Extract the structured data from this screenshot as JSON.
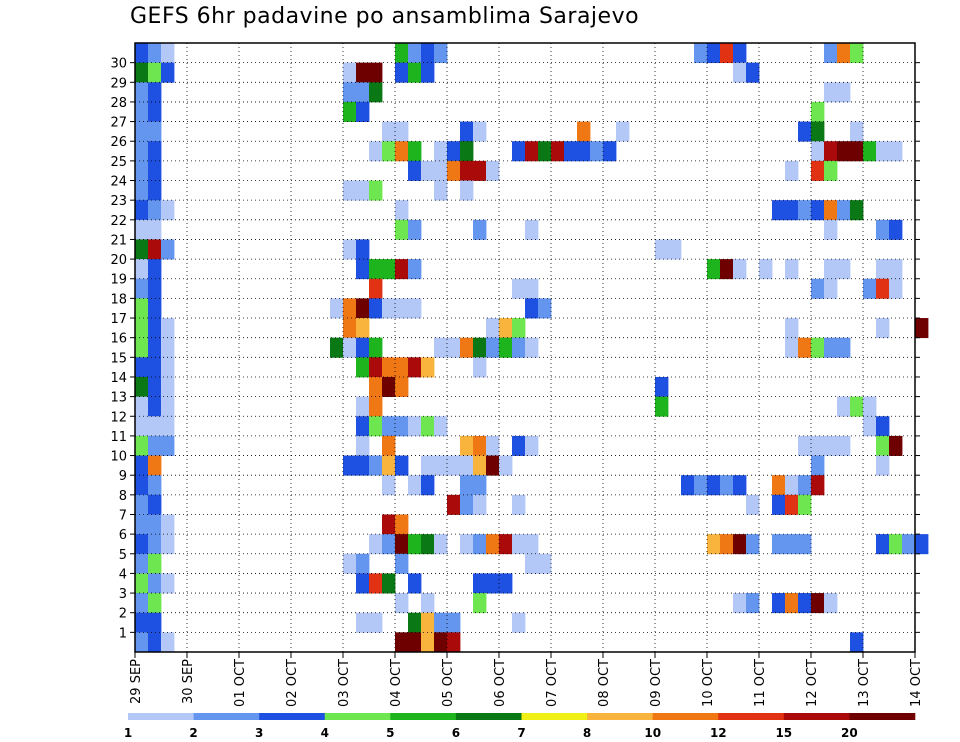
{
  "chart_data": {
    "type": "heatmap",
    "title": "GEFS 6hr padavine po ansamblima Sarajevo",
    "xlabel": "",
    "ylabel": "",
    "x_ticks": [
      "29 SEP",
      "30 SEP",
      "01 OCT",
      "02 OCT",
      "03 OCT",
      "04 OCT",
      "05 OCT",
      "06 OCT",
      "07 OCT",
      "08 OCT",
      "09 OCT",
      "10 OCT",
      "11 OCT",
      "12 OCT",
      "13 OCT",
      "14 OCT"
    ],
    "y_ticks": [
      1,
      2,
      3,
      4,
      5,
      6,
      7,
      8,
      9,
      10,
      11,
      12,
      13,
      14,
      15,
      16,
      17,
      18,
      19,
      20,
      21,
      22,
      23,
      24,
      25,
      26,
      27,
      28,
      29,
      30
    ],
    "steps_per_day": 4,
    "members": 30,
    "grid": true,
    "colorbar": {
      "labels": [
        "1",
        "2",
        "3",
        "4",
        "5",
        "6",
        "7",
        "8",
        "10",
        "12",
        "15",
        "20"
      ],
      "colors": [
        "#b4c8f8",
        "#6496f0",
        "#1e50e1",
        "#6ee650",
        "#1eb41e",
        "#0a7814",
        "#f0f014",
        "#f8b43c",
        "#f07814",
        "#e13214",
        "#aa0a0a",
        "#6e0000"
      ]
    },
    "cells": [
      [
        30,
        0,
        3
      ],
      [
        30,
        1,
        2
      ],
      [
        30,
        2,
        1
      ],
      [
        30,
        20,
        5
      ],
      [
        30,
        21,
        2
      ],
      [
        30,
        22,
        3
      ],
      [
        30,
        23,
        2
      ],
      [
        30,
        43,
        2
      ],
      [
        30,
        44,
        3
      ],
      [
        30,
        45,
        10
      ],
      [
        30,
        46,
        3
      ],
      [
        30,
        53,
        2
      ],
      [
        30,
        54,
        9
      ],
      [
        30,
        55,
        4
      ],
      [
        29,
        0,
        6
      ],
      [
        29,
        1,
        4
      ],
      [
        29,
        2,
        3
      ],
      [
        29,
        16,
        1
      ],
      [
        29,
        17,
        12
      ],
      [
        29,
        18,
        12
      ],
      [
        29,
        20,
        3
      ],
      [
        29,
        21,
        5
      ],
      [
        29,
        22,
        3
      ],
      [
        29,
        46,
        1
      ],
      [
        29,
        47,
        3
      ],
      [
        28,
        0,
        2
      ],
      [
        28,
        1,
        3
      ],
      [
        28,
        16,
        2
      ],
      [
        28,
        17,
        2
      ],
      [
        28,
        18,
        6
      ],
      [
        28,
        53,
        1
      ],
      [
        28,
        54,
        1
      ],
      [
        27,
        0,
        2
      ],
      [
        27,
        1,
        3
      ],
      [
        27,
        16,
        5
      ],
      [
        27,
        17,
        3
      ],
      [
        27,
        52,
        4
      ],
      [
        26,
        0,
        2
      ],
      [
        26,
        1,
        2
      ],
      [
        26,
        19,
        1
      ],
      [
        26,
        20,
        1
      ],
      [
        26,
        25,
        3
      ],
      [
        26,
        26,
        1
      ],
      [
        26,
        34,
        9
      ],
      [
        26,
        37,
        1
      ],
      [
        26,
        51,
        3
      ],
      [
        26,
        52,
        6
      ],
      [
        26,
        55,
        1
      ],
      [
        25,
        0,
        2
      ],
      [
        25,
        1,
        3
      ],
      [
        25,
        18,
        1
      ],
      [
        25,
        19,
        4
      ],
      [
        25,
        20,
        9
      ],
      [
        25,
        21,
        5
      ],
      [
        25,
        23,
        1
      ],
      [
        25,
        24,
        3
      ],
      [
        25,
        25,
        6
      ],
      [
        25,
        29,
        3
      ],
      [
        25,
        30,
        11
      ],
      [
        25,
        31,
        6
      ],
      [
        25,
        32,
        11
      ],
      [
        25,
        33,
        3
      ],
      [
        25,
        34,
        3
      ],
      [
        25,
        35,
        2
      ],
      [
        25,
        36,
        3
      ],
      [
        25,
        52,
        1
      ],
      [
        25,
        53,
        11
      ],
      [
        25,
        54,
        12
      ],
      [
        25,
        55,
        12
      ],
      [
        25,
        56,
        5
      ],
      [
        25,
        57,
        1
      ],
      [
        25,
        58,
        1
      ],
      [
        24,
        0,
        2
      ],
      [
        24,
        1,
        3
      ],
      [
        24,
        21,
        3
      ],
      [
        24,
        22,
        1
      ],
      [
        24,
        23,
        1
      ],
      [
        24,
        24,
        9
      ],
      [
        24,
        25,
        11
      ],
      [
        24,
        26,
        11
      ],
      [
        24,
        27,
        1
      ],
      [
        24,
        50,
        1
      ],
      [
        24,
        52,
        10
      ],
      [
        24,
        53,
        4
      ],
      [
        23,
        0,
        2
      ],
      [
        23,
        1,
        3
      ],
      [
        23,
        16,
        1
      ],
      [
        23,
        17,
        1
      ],
      [
        23,
        18,
        4
      ],
      [
        23,
        23,
        1
      ],
      [
        23,
        25,
        1
      ],
      [
        22,
        0,
        3
      ],
      [
        22,
        1,
        2
      ],
      [
        22,
        2,
        1
      ],
      [
        22,
        20,
        1
      ],
      [
        22,
        49,
        3
      ],
      [
        22,
        50,
        3
      ],
      [
        22,
        51,
        2
      ],
      [
        22,
        52,
        3
      ],
      [
        22,
        53,
        9
      ],
      [
        22,
        54,
        2
      ],
      [
        22,
        55,
        6
      ],
      [
        21,
        0,
        1
      ],
      [
        21,
        1,
        1
      ],
      [
        21,
        20,
        4
      ],
      [
        21,
        21,
        2
      ],
      [
        21,
        26,
        2
      ],
      [
        21,
        30,
        1
      ],
      [
        21,
        53,
        1
      ],
      [
        21,
        57,
        2
      ],
      [
        21,
        58,
        3
      ],
      [
        20,
        0,
        6
      ],
      [
        20,
        1,
        11
      ],
      [
        20,
        2,
        2
      ],
      [
        20,
        16,
        1
      ],
      [
        20,
        17,
        3
      ],
      [
        20,
        40,
        1
      ],
      [
        20,
        41,
        1
      ],
      [
        19,
        0,
        1
      ],
      [
        19,
        1,
        3
      ],
      [
        19,
        17,
        3
      ],
      [
        19,
        18,
        5
      ],
      [
        19,
        19,
        5
      ],
      [
        19,
        20,
        11
      ],
      [
        19,
        21,
        2
      ],
      [
        19,
        44,
        5
      ],
      [
        19,
        45,
        12
      ],
      [
        19,
        46,
        1
      ],
      [
        19,
        48,
        1
      ],
      [
        19,
        50,
        1
      ],
      [
        19,
        53,
        1
      ],
      [
        19,
        54,
        1
      ],
      [
        19,
        57,
        1
      ],
      [
        19,
        58,
        1
      ],
      [
        18,
        0,
        2
      ],
      [
        18,
        1,
        3
      ],
      [
        18,
        18,
        10
      ],
      [
        18,
        29,
        1
      ],
      [
        18,
        30,
        1
      ],
      [
        18,
        52,
        2
      ],
      [
        18,
        53,
        1
      ],
      [
        18,
        56,
        2
      ],
      [
        18,
        57,
        10
      ],
      [
        18,
        58,
        1
      ],
      [
        17,
        0,
        4
      ],
      [
        17,
        1,
        3
      ],
      [
        17,
        15,
        1
      ],
      [
        17,
        16,
        9
      ],
      [
        17,
        17,
        12
      ],
      [
        17,
        18,
        3
      ],
      [
        17,
        19,
        1
      ],
      [
        17,
        20,
        1
      ],
      [
        17,
        21,
        1
      ],
      [
        17,
        30,
        3
      ],
      [
        17,
        31,
        2
      ],
      [
        16,
        0,
        4
      ],
      [
        16,
        1,
        3
      ],
      [
        16,
        2,
        1
      ],
      [
        16,
        16,
        9
      ],
      [
        16,
        17,
        8
      ],
      [
        16,
        27,
        1
      ],
      [
        16,
        28,
        8
      ],
      [
        16,
        29,
        4
      ],
      [
        16,
        50,
        1
      ],
      [
        16,
        57,
        1
      ],
      [
        16,
        60,
        12
      ],
      [
        15,
        0,
        4
      ],
      [
        15,
        1,
        3
      ],
      [
        15,
        2,
        1
      ],
      [
        15,
        15,
        6
      ],
      [
        15,
        16,
        1
      ],
      [
        15,
        17,
        3
      ],
      [
        15,
        18,
        5
      ],
      [
        15,
        23,
        1
      ],
      [
        15,
        24,
        1
      ],
      [
        15,
        25,
        9
      ],
      [
        15,
        26,
        6
      ],
      [
        15,
        27,
        2
      ],
      [
        15,
        28,
        5
      ],
      [
        15,
        29,
        2
      ],
      [
        15,
        30,
        1
      ],
      [
        15,
        50,
        1
      ],
      [
        15,
        51,
        9
      ],
      [
        15,
        52,
        4
      ],
      [
        15,
        53,
        2
      ],
      [
        15,
        54,
        2
      ],
      [
        14,
        0,
        3
      ],
      [
        14,
        1,
        3
      ],
      [
        14,
        2,
        1
      ],
      [
        14,
        17,
        5
      ],
      [
        14,
        18,
        11
      ],
      [
        14,
        19,
        9
      ],
      [
        14,
        20,
        9
      ],
      [
        14,
        21,
        11
      ],
      [
        14,
        22,
        8
      ],
      [
        14,
        26,
        1
      ],
      [
        13,
        0,
        6
      ],
      [
        13,
        1,
        3
      ],
      [
        13,
        2,
        1
      ],
      [
        13,
        18,
        9
      ],
      [
        13,
        19,
        12
      ],
      [
        13,
        20,
        9
      ],
      [
        13,
        40,
        3
      ],
      [
        12,
        0,
        1
      ],
      [
        12,
        1,
        3
      ],
      [
        12,
        2,
        1
      ],
      [
        12,
        17,
        1
      ],
      [
        12,
        18,
        9
      ],
      [
        12,
        40,
        5
      ],
      [
        12,
        54,
        1
      ],
      [
        12,
        55,
        4
      ],
      [
        12,
        56,
        1
      ],
      [
        11,
        0,
        1
      ],
      [
        11,
        1,
        1
      ],
      [
        11,
        2,
        1
      ],
      [
        11,
        17,
        3
      ],
      [
        11,
        18,
        4
      ],
      [
        11,
        19,
        2
      ],
      [
        11,
        20,
        2
      ],
      [
        11,
        21,
        1
      ],
      [
        11,
        22,
        4
      ],
      [
        11,
        23,
        1
      ],
      [
        11,
        56,
        1
      ],
      [
        11,
        57,
        3
      ],
      [
        10,
        0,
        4
      ],
      [
        10,
        1,
        2
      ],
      [
        10,
        2,
        2
      ],
      [
        10,
        17,
        1
      ],
      [
        10,
        19,
        9
      ],
      [
        10,
        25,
        8
      ],
      [
        10,
        26,
        9
      ],
      [
        10,
        27,
        1
      ],
      [
        10,
        29,
        3
      ],
      [
        10,
        30,
        1
      ],
      [
        10,
        51,
        1
      ],
      [
        10,
        52,
        1
      ],
      [
        10,
        53,
        1
      ],
      [
        10,
        54,
        1
      ],
      [
        10,
        57,
        4
      ],
      [
        10,
        58,
        12
      ],
      [
        9,
        0,
        3
      ],
      [
        9,
        1,
        9
      ],
      [
        9,
        16,
        3
      ],
      [
        9,
        17,
        3
      ],
      [
        9,
        18,
        2
      ],
      [
        9,
        19,
        8
      ],
      [
        9,
        20,
        3
      ],
      [
        9,
        22,
        1
      ],
      [
        9,
        23,
        1
      ],
      [
        9,
        24,
        1
      ],
      [
        9,
        25,
        1
      ],
      [
        9,
        26,
        8
      ],
      [
        9,
        27,
        12
      ],
      [
        9,
        28,
        1
      ],
      [
        9,
        52,
        2
      ],
      [
        9,
        57,
        1
      ],
      [
        8,
        0,
        3
      ],
      [
        8,
        1,
        2
      ],
      [
        8,
        19,
        1
      ],
      [
        8,
        21,
        1
      ],
      [
        8,
        22,
        3
      ],
      [
        8,
        25,
        2
      ],
      [
        8,
        26,
        2
      ],
      [
        8,
        42,
        3
      ],
      [
        8,
        43,
        2
      ],
      [
        8,
        44,
        3
      ],
      [
        8,
        45,
        2
      ],
      [
        8,
        46,
        3
      ],
      [
        8,
        49,
        9
      ],
      [
        8,
        50,
        1
      ],
      [
        8,
        51,
        2
      ],
      [
        8,
        52,
        11
      ],
      [
        7,
        0,
        2
      ],
      [
        7,
        1,
        3
      ],
      [
        7,
        24,
        11
      ],
      [
        7,
        25,
        2
      ],
      [
        7,
        26,
        1
      ],
      [
        7,
        29,
        1
      ],
      [
        7,
        47,
        1
      ],
      [
        7,
        49,
        3
      ],
      [
        7,
        50,
        10
      ],
      [
        7,
        51,
        4
      ],
      [
        6,
        0,
        2
      ],
      [
        6,
        1,
        2
      ],
      [
        6,
        2,
        1
      ],
      [
        6,
        19,
        11
      ],
      [
        6,
        20,
        9
      ],
      [
        5,
        0,
        3
      ],
      [
        5,
        1,
        2
      ],
      [
        5,
        2,
        1
      ],
      [
        5,
        18,
        1
      ],
      [
        5,
        19,
        2
      ],
      [
        5,
        20,
        12
      ],
      [
        5,
        21,
        5
      ],
      [
        5,
        22,
        6
      ],
      [
        5,
        23,
        1
      ],
      [
        5,
        25,
        1
      ],
      [
        5,
        26,
        2
      ],
      [
        5,
        27,
        9
      ],
      [
        5,
        28,
        11
      ],
      [
        5,
        29,
        1
      ],
      [
        5,
        30,
        1
      ],
      [
        5,
        44,
        8
      ],
      [
        5,
        45,
        9
      ],
      [
        5,
        46,
        12
      ],
      [
        5,
        47,
        2
      ],
      [
        5,
        49,
        2
      ],
      [
        5,
        50,
        2
      ],
      [
        5,
        51,
        2
      ],
      [
        5,
        57,
        3
      ],
      [
        5,
        58,
        4
      ],
      [
        5,
        59,
        2
      ],
      [
        5,
        60,
        3
      ],
      [
        4,
        0,
        2
      ],
      [
        4,
        1,
        4
      ],
      [
        4,
        16,
        1
      ],
      [
        4,
        17,
        2
      ],
      [
        4,
        20,
        2
      ],
      [
        4,
        30,
        1
      ],
      [
        4,
        31,
        1
      ],
      [
        3,
        0,
        4
      ],
      [
        3,
        1,
        2
      ],
      [
        3,
        2,
        1
      ],
      [
        3,
        17,
        3
      ],
      [
        3,
        18,
        10
      ],
      [
        3,
        19,
        6
      ],
      [
        3,
        21,
        3
      ],
      [
        3,
        26,
        3
      ],
      [
        3,
        27,
        3
      ],
      [
        3,
        28,
        3
      ],
      [
        2,
        0,
        2
      ],
      [
        2,
        1,
        4
      ],
      [
        2,
        20,
        1
      ],
      [
        2,
        22,
        1
      ],
      [
        2,
        26,
        4
      ],
      [
        2,
        46,
        1
      ],
      [
        2,
        47,
        2
      ],
      [
        2,
        49,
        3
      ],
      [
        2,
        50,
        9
      ],
      [
        2,
        51,
        3
      ],
      [
        2,
        52,
        12
      ],
      [
        2,
        53,
        1
      ],
      [
        1,
        0,
        3
      ],
      [
        1,
        1,
        3
      ],
      [
        1,
        17,
        1
      ],
      [
        1,
        18,
        1
      ],
      [
        1,
        21,
        6
      ],
      [
        1,
        22,
        8
      ],
      [
        1,
        23,
        2
      ],
      [
        1,
        24,
        2
      ],
      [
        1,
        29,
        1
      ],
      [
        0,
        0,
        2
      ],
      [
        0,
        1,
        3
      ],
      [
        0,
        2,
        1
      ],
      [
        0,
        20,
        12
      ],
      [
        0,
        21,
        12
      ],
      [
        0,
        22,
        8
      ],
      [
        0,
        23,
        12
      ],
      [
        0,
        24,
        11
      ],
      [
        0,
        55,
        3
      ]
    ]
  }
}
